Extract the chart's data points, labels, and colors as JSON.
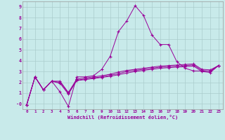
{
  "background_color": "#c8eaea",
  "line_color": "#990099",
  "grid_color": "#aacccc",
  "xlim_min": -0.5,
  "xlim_max": 23.5,
  "ylim_min": -0.5,
  "ylim_max": 9.5,
  "xticks": [
    0,
    1,
    2,
    3,
    4,
    5,
    6,
    7,
    8,
    9,
    10,
    11,
    12,
    13,
    14,
    15,
    16,
    17,
    18,
    19,
    20,
    21,
    22,
    23
  ],
  "yticks": [
    0,
    1,
    2,
    3,
    4,
    5,
    6,
    7,
    8,
    9
  ],
  "ytick_labels": [
    "-0",
    "1",
    "2",
    "3",
    "4",
    "5",
    "6",
    "7",
    "8",
    "9"
  ],
  "xlabel": "Windchill (Refroidissement éolien,°C)",
  "series1": [
    -0.1,
    2.5,
    1.3,
    2.1,
    1.1,
    -0.25,
    2.5,
    2.5,
    2.6,
    3.2,
    4.4,
    6.7,
    7.7,
    9.1,
    8.2,
    6.4,
    5.5,
    5.5,
    3.9,
    3.3,
    3.05,
    3.05,
    3.05,
    3.55
  ],
  "series2": [
    -0.1,
    2.5,
    1.3,
    2.1,
    2.1,
    1.05,
    2.3,
    2.4,
    2.5,
    2.6,
    2.75,
    2.95,
    3.1,
    3.2,
    3.3,
    3.4,
    3.5,
    3.55,
    3.6,
    3.65,
    3.7,
    3.2,
    3.15,
    3.55
  ],
  "series3": [
    -0.1,
    2.5,
    1.3,
    2.1,
    2.0,
    1.0,
    2.2,
    2.3,
    2.4,
    2.5,
    2.65,
    2.8,
    3.0,
    3.1,
    3.2,
    3.3,
    3.4,
    3.45,
    3.5,
    3.55,
    3.6,
    3.1,
    3.0,
    3.55
  ],
  "series4": [
    -0.1,
    2.5,
    1.3,
    2.1,
    1.9,
    0.9,
    2.15,
    2.25,
    2.35,
    2.45,
    2.55,
    2.7,
    2.85,
    3.0,
    3.1,
    3.2,
    3.3,
    3.35,
    3.4,
    3.45,
    3.5,
    3.0,
    2.9,
    3.55
  ]
}
